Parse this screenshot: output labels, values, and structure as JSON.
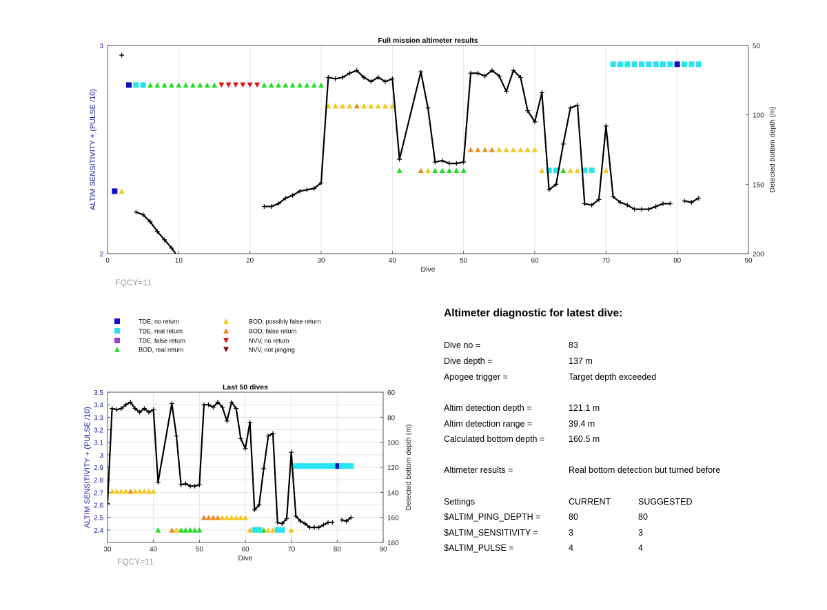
{
  "chart_data": [
    {
      "type": "scatter",
      "title": "Full mission altimeter results",
      "xlabel": "Dive",
      "ylabel_left": "ALTIM SENSITIVITY + (PULSE /10)",
      "ylabel_right": "Detected bottom depth (m)",
      "xlim": [
        0,
        90
      ],
      "ylim_left": [
        2,
        3
      ],
      "ylim_right": [
        50,
        200
      ],
      "xticks": [
        "0",
        "10",
        "20",
        "30",
        "40",
        "50",
        "60",
        "70",
        "80",
        "90"
      ],
      "yticks_left": [
        "2",
        "3"
      ],
      "yticks_right": [
        "50",
        "100",
        "150",
        "200"
      ],
      "footnote": "FQCY=11",
      "grid": true,
      "depth_segments": [
        [
          [
            2,
            57
          ]
        ],
        [
          [
            4,
            170
          ],
          [
            5,
            172
          ],
          [
            6,
            177
          ],
          [
            7,
            184
          ],
          [
            8,
            190
          ],
          [
            9,
            196
          ],
          [
            10,
            203
          ],
          [
            11,
            211
          ],
          [
            12,
            220
          ],
          [
            13,
            227
          ],
          [
            14,
            230
          ],
          [
            15,
            237
          ]
        ],
        [
          [
            22,
            166
          ],
          [
            23,
            166
          ],
          [
            24,
            164
          ],
          [
            25,
            160
          ],
          [
            26,
            158
          ],
          [
            27,
            155
          ],
          [
            28,
            154
          ],
          [
            29,
            153
          ],
          [
            30,
            149
          ],
          [
            31,
            73
          ],
          [
            32,
            74
          ],
          [
            33,
            73
          ],
          [
            34,
            70
          ],
          [
            35,
            68
          ],
          [
            36,
            73
          ],
          [
            37,
            76
          ],
          [
            38,
            73
          ],
          [
            39,
            76
          ],
          [
            40,
            74
          ],
          [
            41,
            132
          ],
          [
            44,
            69
          ],
          [
            45,
            95
          ],
          [
            46,
            134
          ],
          [
            47,
            133
          ],
          [
            48,
            135
          ],
          [
            49,
            135
          ],
          [
            50,
            134
          ],
          [
            51,
            70
          ],
          [
            52,
            70
          ],
          [
            53,
            72
          ],
          [
            54,
            68
          ],
          [
            55,
            72
          ],
          [
            56,
            83
          ],
          [
            57,
            68
          ],
          [
            58,
            73
          ],
          [
            59,
            97
          ],
          [
            60,
            105
          ],
          [
            61,
            84
          ],
          [
            62,
            154
          ],
          [
            63,
            150
          ],
          [
            64,
            121
          ],
          [
            65,
            95
          ],
          [
            66,
            93
          ],
          [
            67,
            164
          ],
          [
            68,
            165
          ],
          [
            69,
            161
          ],
          [
            70,
            108
          ],
          [
            71,
            159
          ],
          [
            72,
            163
          ],
          [
            73,
            165
          ],
          [
            74,
            168
          ],
          [
            75,
            168
          ],
          [
            76,
            168
          ],
          [
            77,
            166
          ],
          [
            78,
            164
          ],
          [
            79,
            164
          ]
        ],
        [
          [
            81,
            162
          ],
          [
            82,
            163
          ],
          [
            83,
            160
          ]
        ]
      ],
      "altim_series": [
        {
          "name": "TDE, no return",
          "color": "#1010c8",
          "marker": "square",
          "points": [
            [
              1,
              2.3
            ],
            [
              3,
              2.81
            ],
            [
              80,
              2.91
            ]
          ]
        },
        {
          "name": "TDE, real return",
          "color": "#27e3f3",
          "marker": "square",
          "points": [
            [
              4,
              2.81
            ],
            [
              5,
              2.81
            ],
            [
              71,
              2.91
            ],
            [
              72,
              2.91
            ],
            [
              73,
              2.91
            ],
            [
              74,
              2.91
            ],
            [
              75,
              2.91
            ],
            [
              76,
              2.91
            ],
            [
              77,
              2.91
            ],
            [
              78,
              2.91
            ],
            [
              79,
              2.91
            ],
            [
              81,
              2.91
            ],
            [
              82,
              2.91
            ],
            [
              83,
              2.91
            ],
            [
              62,
              2.4
            ],
            [
              63,
              2.4
            ],
            [
              67,
              2.4
            ],
            [
              68,
              2.4
            ]
          ]
        },
        {
          "name": "BOD, real return",
          "color": "#22dd22",
          "marker": "triangle-up",
          "points": [
            [
              6,
              2.81
            ],
            [
              7,
              2.81
            ],
            [
              8,
              2.81
            ],
            [
              9,
              2.81
            ],
            [
              10,
              2.81
            ],
            [
              11,
              2.81
            ],
            [
              12,
              2.81
            ],
            [
              13,
              2.81
            ],
            [
              14,
              2.81
            ],
            [
              15,
              2.81
            ],
            [
              22,
              2.81
            ],
            [
              23,
              2.81
            ],
            [
              24,
              2.81
            ],
            [
              25,
              2.81
            ],
            [
              26,
              2.81
            ],
            [
              27,
              2.81
            ],
            [
              28,
              2.81
            ],
            [
              29,
              2.81
            ],
            [
              30,
              2.81
            ],
            [
              41,
              2.4
            ],
            [
              46,
              2.4
            ],
            [
              47,
              2.4
            ],
            [
              48,
              2.4
            ],
            [
              49,
              2.4
            ],
            [
              50,
              2.4
            ],
            [
              64,
              2.4
            ]
          ]
        },
        {
          "name": "NVV, no return",
          "color": "#dd1111",
          "marker": "triangle-down",
          "points": [
            [
              16,
              2.81
            ],
            [
              17,
              2.81
            ],
            [
              18,
              2.81
            ],
            [
              19,
              2.81
            ],
            [
              20,
              2.81
            ],
            [
              21,
              2.81
            ]
          ]
        },
        {
          "name": "BOD, possibly false return",
          "color": "#f7c520",
          "marker": "triangle-up",
          "points": [
            [
              2,
              2.3
            ],
            [
              31,
              2.71
            ],
            [
              32,
              2.71
            ],
            [
              33,
              2.71
            ],
            [
              34,
              2.71
            ],
            [
              36,
              2.71
            ],
            [
              37,
              2.71
            ],
            [
              38,
              2.71
            ],
            [
              39,
              2.71
            ],
            [
              40,
              2.71
            ],
            [
              45,
              2.4
            ],
            [
              55,
              2.5
            ],
            [
              56,
              2.5
            ],
            [
              57,
              2.5
            ],
            [
              58,
              2.5
            ],
            [
              59,
              2.5
            ],
            [
              60,
              2.5
            ],
            [
              61,
              2.4
            ],
            [
              65,
              2.4
            ],
            [
              66,
              2.4
            ],
            [
              70,
              2.4
            ]
          ]
        },
        {
          "name": "BOD, false return",
          "color": "#f08a1c",
          "marker": "triangle-up",
          "points": [
            [
              35,
              2.71
            ],
            [
              44,
              2.4
            ],
            [
              51,
              2.5
            ],
            [
              52,
              2.5
            ],
            [
              53,
              2.5
            ],
            [
              54,
              2.5
            ]
          ]
        }
      ]
    },
    {
      "type": "scatter",
      "title": "Last 50 dives",
      "xlabel": "Dive",
      "ylabel_left": "ALTIM SENSITIVITY + (PULSE /10)",
      "ylabel_right": "Detected bottom depth (m)",
      "xlim": [
        30,
        90
      ],
      "ylim_left": [
        2.3,
        3.5
      ],
      "ylim_right": [
        60,
        180
      ],
      "xticks": [
        "30",
        "40",
        "50",
        "60",
        "70",
        "80",
        "90"
      ],
      "yticks_left": [
        "2.4",
        "2.5",
        "2.6",
        "2.7",
        "2.8",
        "2.9",
        "3",
        "3.1",
        "3.2",
        "3.3",
        "3.4",
        "3.5"
      ],
      "yticks_right": [
        "60",
        "80",
        "100",
        "120",
        "140",
        "160",
        "180"
      ],
      "footnote": "FQCY=11",
      "grid": true
    }
  ],
  "legend": [
    {
      "label": "TDE, no return",
      "color": "#1010c8",
      "marker": "square"
    },
    {
      "label": "TDE, real return",
      "color": "#27e3f3",
      "marker": "square"
    },
    {
      "label": "TDE, false return",
      "color": "#9b3fd6",
      "marker": "square"
    },
    {
      "label": "BOD, real return",
      "color": "#22dd22",
      "marker": "triangle-up"
    },
    {
      "label": "BOD, possibly false return",
      "color": "#f7c520",
      "marker": "triangle-up"
    },
    {
      "label": "BOD, false return",
      "color": "#f08a1c",
      "marker": "triangle-up"
    },
    {
      "label": "NVV, no return",
      "color": "#dd1111",
      "marker": "triangle-down"
    },
    {
      "label": "NVV, not pinging",
      "color": "#8b0a0a",
      "marker": "triangle-down"
    }
  ],
  "diagnostic": {
    "title": "Altimeter diagnostic for latest dive:",
    "rows": [
      {
        "label": "Dive no =",
        "value": "83"
      },
      {
        "label": "Dive depth =",
        "value": "137 m"
      },
      {
        "label": "Apogee trigger =",
        "value": "Target depth exceeded"
      },
      {
        "label": "Altim detection depth =",
        "value": "121.1 m"
      },
      {
        "label": "Altim detection range =",
        "value": "39.4 m"
      },
      {
        "label": "Calculated bottom depth =",
        "value": "160.5 m"
      },
      {
        "label": "Altimeter results =",
        "value": "Real bottom detection but turned before"
      }
    ],
    "settings": {
      "header": {
        "label": "Settings",
        "current": "CURRENT",
        "suggested": "SUGGESTED"
      },
      "rows": [
        {
          "label": "$ALTIM_PING_DEPTH =",
          "current": "80",
          "suggested": "80"
        },
        {
          "label": "$ALTIM_SENSITIVITY =",
          "current": "3",
          "suggested": "3"
        },
        {
          "label": "$ALTIM_PULSE =",
          "current": "4",
          "suggested": "4"
        }
      ]
    }
  }
}
